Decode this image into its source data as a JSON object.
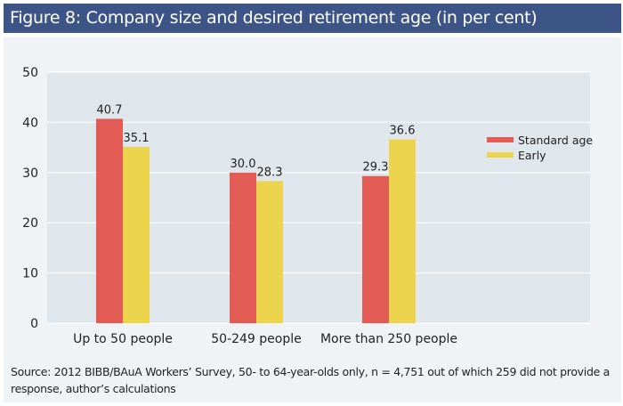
{
  "title": "Figure 8: Company size and desired retirement age (in per cent)",
  "source": "Source: 2012 BIBB/BAuA Workers’ Survey, 50- to 64-year-olds only, n = 4,751 out of which 259 did not provide a response, author’s calculations",
  "colors": {
    "header": "#3c5586",
    "standard": "#e35b55",
    "early": "#ecd44c",
    "plot_bg": "#dfe6ec",
    "panel_bg": "#eff3f6"
  },
  "chart_data": {
    "type": "bar",
    "title": "Company size and desired retirement age (in per cent)",
    "xlabel": "",
    "ylabel": "",
    "categories": [
      "Up to 50 people",
      "50-249 people",
      "More than 250 people"
    ],
    "series": [
      {
        "name": "Standard age",
        "color": "#e35b55",
        "values": [
          40.7,
          30.0,
          29.3
        ],
        "labels": [
          "40.7",
          "30.0",
          "29.3"
        ]
      },
      {
        "name": "Early",
        "color": "#ecd44c",
        "values": [
          35.1,
          28.3,
          36.6
        ],
        "labels": [
          "35.1",
          "28.3",
          "36.6"
        ]
      }
    ],
    "ylim": [
      0,
      50
    ],
    "yticks": [
      "0",
      "10",
      "20",
      "30",
      "40",
      "50"
    ],
    "grid": true,
    "legend": "right"
  }
}
